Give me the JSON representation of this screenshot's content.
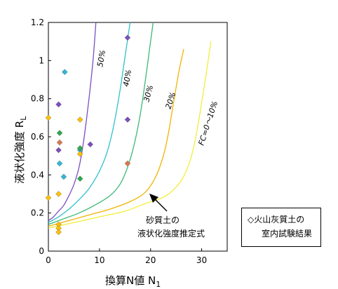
{
  "chart_data": {
    "type": "scatter",
    "xlabel": "換算N値 N",
    "xlabel_sub": "1",
    "ylabel": "液状化強度 R",
    "ylabel_sub": "L",
    "xlim": [
      0,
      35
    ],
    "ylim": [
      0,
      1.2
    ],
    "x_ticks": [
      0,
      10,
      20,
      30
    ],
    "y_ticks": [
      0,
      0.2,
      0.4,
      0.6,
      0.8,
      1,
      1.2
    ],
    "y_tick_labels": [
      "0",
      "0.2",
      "0.4",
      "0.6",
      "0.8",
      "1",
      "1.2"
    ],
    "curves": [
      {
        "label": "50%",
        "color": "#7b4fc0",
        "points": [
          [
            0,
            0.16
          ],
          [
            1,
            0.18
          ],
          [
            2,
            0.21
          ],
          [
            3,
            0.24
          ],
          [
            4,
            0.29
          ],
          [
            5,
            0.35
          ],
          [
            6,
            0.44
          ],
          [
            6.8,
            0.56
          ],
          [
            7.5,
            0.7
          ],
          [
            8.2,
            0.86
          ],
          [
            8.8,
            1.02
          ],
          [
            9.3,
            1.2
          ]
        ]
      },
      {
        "label": "40%",
        "color": "#30c0cc",
        "points": [
          [
            0,
            0.15
          ],
          [
            2,
            0.18
          ],
          [
            4,
            0.22
          ],
          [
            6,
            0.27
          ],
          [
            8,
            0.33
          ],
          [
            10,
            0.42
          ],
          [
            11.5,
            0.52
          ],
          [
            12.8,
            0.66
          ],
          [
            14,
            0.84
          ],
          [
            15,
            1.02
          ],
          [
            16,
            1.2
          ]
        ]
      },
      {
        "label": "30%",
        "color": "#3cb878",
        "points": [
          [
            0,
            0.14
          ],
          [
            3,
            0.17
          ],
          [
            6,
            0.2
          ],
          [
            9,
            0.24
          ],
          [
            12,
            0.29
          ],
          [
            14,
            0.35
          ],
          [
            15.5,
            0.44
          ],
          [
            16.8,
            0.56
          ],
          [
            18,
            0.72
          ],
          [
            19,
            0.9
          ],
          [
            20,
            1.1
          ],
          [
            20.5,
            1.2
          ]
        ]
      },
      {
        "label": "20%",
        "color": "#f0b400",
        "points": [
          [
            0,
            0.13
          ],
          [
            4,
            0.16
          ],
          [
            8,
            0.19
          ],
          [
            12,
            0.22
          ],
          [
            16,
            0.26
          ],
          [
            19,
            0.31
          ],
          [
            21,
            0.39
          ],
          [
            22.5,
            0.5
          ],
          [
            23.5,
            0.62
          ],
          [
            24.5,
            0.78
          ],
          [
            25.6,
            0.95
          ],
          [
            26.5,
            1.06
          ]
        ]
      },
      {
        "label": "FC=0～10%",
        "color": "#f2ee3a",
        "points": [
          [
            0,
            0.12
          ],
          [
            5,
            0.15
          ],
          [
            10,
            0.18
          ],
          [
            15,
            0.21
          ],
          [
            19,
            0.25
          ],
          [
            23,
            0.29
          ],
          [
            26,
            0.37
          ],
          [
            27.8,
            0.48
          ],
          [
            29,
            0.62
          ],
          [
            30,
            0.78
          ],
          [
            31,
            0.95
          ],
          [
            31.8,
            1.1
          ]
        ]
      }
    ],
    "series": [
      {
        "color": "#7b4fc0",
        "points": [
          [
            2,
            0.77
          ],
          [
            2,
            0.53
          ],
          [
            8.2,
            0.56
          ],
          [
            15.5,
            1.12
          ],
          [
            15.5,
            0.69
          ]
        ]
      },
      {
        "color": "#30b8d8",
        "points": [
          [
            3.2,
            0.94
          ],
          [
            2.2,
            0.46
          ],
          [
            3,
            0.39
          ],
          [
            6.2,
            0.53
          ]
        ]
      },
      {
        "color": "#2fa84f",
        "points": [
          [
            2.2,
            0.62
          ],
          [
            6.2,
            0.54
          ],
          [
            6.2,
            0.38
          ]
        ]
      },
      {
        "color": "#d9784a",
        "points": [
          [
            2.2,
            0.57
          ],
          [
            15.5,
            0.46
          ]
        ]
      },
      {
        "color": "#ffc000",
        "points": [
          [
            0,
            0.7
          ],
          [
            0,
            0.28
          ],
          [
            2,
            0.3
          ],
          [
            6.2,
            0.69
          ],
          [
            6.2,
            0.51
          ],
          [
            2,
            0.14
          ],
          [
            2,
            0.12
          ],
          [
            2,
            0.1
          ]
        ]
      }
    ],
    "annotation": {
      "line1": "砂質土の",
      "line2": "液状化強度推定式"
    },
    "legend": {
      "line1": "◇火山灰質土の",
      "line2": "室内試験結果"
    }
  }
}
